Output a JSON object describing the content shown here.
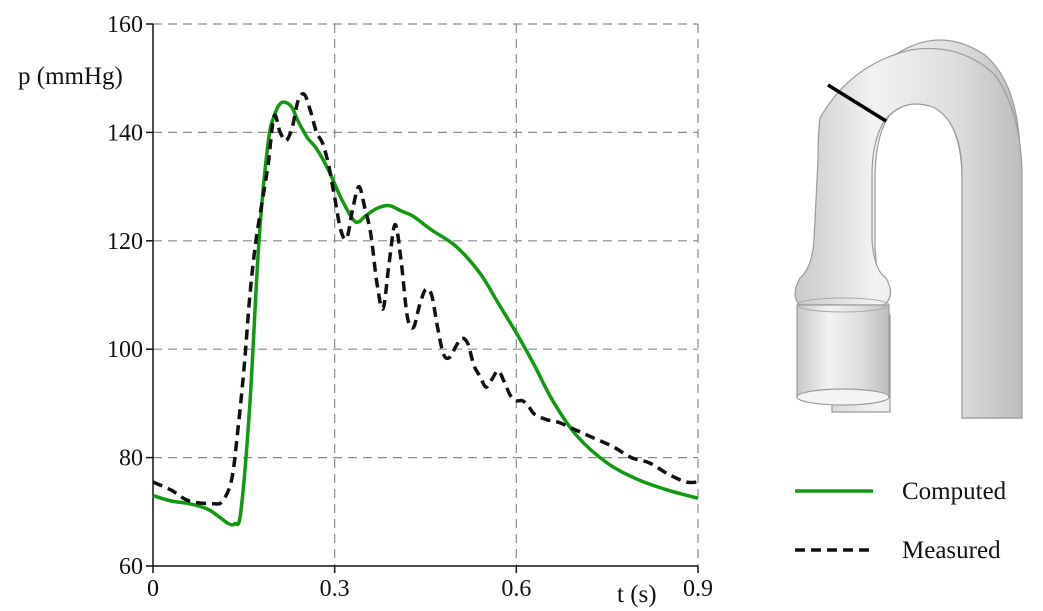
{
  "chart_data": {
    "type": "line",
    "xlabel": "t (s)",
    "ylabel": "p (mmHg)",
    "xlim": [
      0,
      0.9
    ],
    "ylim": [
      60,
      160
    ],
    "x_ticks": [
      0,
      0.3,
      0.6,
      0.9
    ],
    "x_tick_labels": [
      "0",
      "0.3",
      "0.6",
      "0.9"
    ],
    "y_ticks": [
      60,
      80,
      100,
      120,
      140,
      160
    ],
    "y_tick_labels": [
      "60",
      "80",
      "100",
      "120",
      "140",
      "160"
    ],
    "grid": true,
    "legend_position": "bottom-right",
    "series": [
      {
        "name": "Computed",
        "color": "#119911",
        "style": "solid",
        "x": [
          0,
          0.03,
          0.06,
          0.09,
          0.11,
          0.125,
          0.135,
          0.145,
          0.16,
          0.175,
          0.19,
          0.2,
          0.21,
          0.22,
          0.23,
          0.24,
          0.255,
          0.27,
          0.29,
          0.31,
          0.33,
          0.34,
          0.35,
          0.37,
          0.39,
          0.41,
          0.43,
          0.46,
          0.5,
          0.54,
          0.57,
          0.6,
          0.63,
          0.66,
          0.7,
          0.75,
          0.8,
          0.85,
          0.9
        ],
        "y": [
          73,
          72,
          71.5,
          70.5,
          69,
          67.8,
          67.8,
          70,
          90,
          120,
          138,
          143,
          145.3,
          145.5,
          144.5,
          142,
          139,
          137,
          133,
          128,
          124,
          123.5,
          124.5,
          126,
          126.5,
          125.5,
          124.5,
          122,
          119,
          114,
          108.5,
          103,
          97,
          90.5,
          84,
          79,
          76,
          74,
          72.5
        ]
      },
      {
        "name": "Measured",
        "color": "#111111",
        "style": "dashed",
        "x": [
          0,
          0.03,
          0.06,
          0.1,
          0.115,
          0.13,
          0.14,
          0.15,
          0.16,
          0.17,
          0.18,
          0.19,
          0.2,
          0.21,
          0.22,
          0.23,
          0.24,
          0.25,
          0.26,
          0.27,
          0.28,
          0.29,
          0.3,
          0.31,
          0.32,
          0.33,
          0.34,
          0.35,
          0.36,
          0.37,
          0.38,
          0.39,
          0.4,
          0.41,
          0.42,
          0.43,
          0.44,
          0.45,
          0.46,
          0.47,
          0.48,
          0.49,
          0.5,
          0.51,
          0.52,
          0.53,
          0.54,
          0.55,
          0.56,
          0.57,
          0.58,
          0.59,
          0.6,
          0.61,
          0.62,
          0.63,
          0.65,
          0.67,
          0.7,
          0.73,
          0.76,
          0.79,
          0.82,
          0.85,
          0.88,
          0.9
        ],
        "y": [
          75.5,
          74,
          72,
          71.5,
          72,
          76,
          85,
          96,
          110,
          120,
          127,
          134,
          143,
          140,
          138.5,
          141,
          146,
          147,
          144,
          140,
          138,
          134,
          128,
          122,
          120.5,
          126,
          130,
          126,
          121,
          112,
          107.5,
          116,
          123,
          116,
          106,
          104,
          108,
          111,
          110,
          104,
          99,
          98.5,
          100.5,
          102,
          101,
          97,
          95,
          93,
          94.5,
          96,
          94,
          91.5,
          90.5,
          90.5,
          89.5,
          88,
          87,
          86.5,
          85,
          83.5,
          82,
          80,
          79,
          77,
          75.5,
          75.5
        ]
      }
    ]
  }
}
